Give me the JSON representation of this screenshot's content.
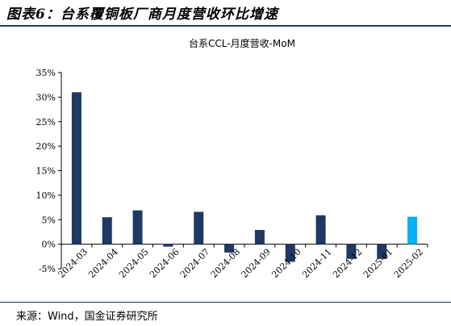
{
  "header": {
    "title": "图表6：台系覆铜板厂商月度营收环比增速"
  },
  "footer": {
    "source": "来源：Wind，国金证券研究所"
  },
  "colors": {
    "bar": "#1f3864",
    "highlight": "#00b0f0",
    "rule": "#1f3864"
  },
  "chart_data": {
    "type": "bar",
    "title": "台系CCL-月度营收-MoM",
    "categories": [
      "2024-03",
      "2024-04",
      "2024-05",
      "2024-06",
      "2024-07",
      "2024-08",
      "2024-09",
      "2024-10",
      "2024-11",
      "2024-12",
      "2025-01",
      "2025-02"
    ],
    "values": [
      31.0,
      5.5,
      6.9,
      -0.5,
      6.6,
      -1.7,
      2.9,
      -3.6,
      5.9,
      -3.0,
      -3.0,
      5.6
    ],
    "highlight_last": true,
    "ylim": [
      -5,
      35
    ],
    "yticks": [
      "-5%",
      "0%",
      "5%",
      "10%",
      "15%",
      "20%",
      "25%",
      "30%",
      "35%"
    ],
    "xlabel": "",
    "ylabel": "",
    "grid": false,
    "legend": "none"
  }
}
